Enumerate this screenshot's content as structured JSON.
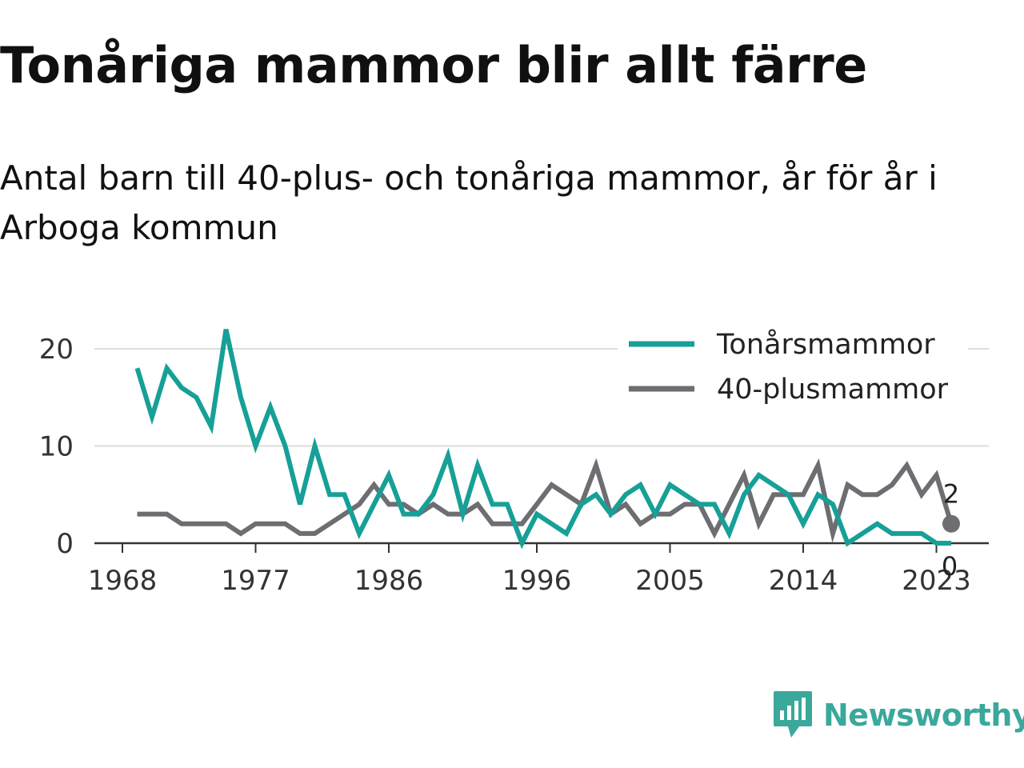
{
  "title": "Tonåriga mammor blir allt färre",
  "subtitle": "Antal barn till 40-plus- och tonåriga mammor, år för år i Arboga kommun",
  "brand": {
    "name": "Newsworthy",
    "color": "#3aa89a",
    "icon": "newsworthy-logo-icon"
  },
  "chart_data": {
    "type": "line",
    "x": [
      1969,
      1970,
      1971,
      1972,
      1973,
      1974,
      1975,
      1976,
      1977,
      1978,
      1979,
      1980,
      1981,
      1982,
      1983,
      1984,
      1985,
      1986,
      1987,
      1988,
      1989,
      1990,
      1991,
      1992,
      1993,
      1994,
      1995,
      1996,
      1997,
      1998,
      1999,
      2000,
      2001,
      2002,
      2003,
      2004,
      2005,
      2006,
      2007,
      2008,
      2009,
      2010,
      2011,
      2012,
      2013,
      2014,
      2015,
      2016,
      2017,
      2018,
      2019,
      2020,
      2021,
      2022,
      2023,
      2024
    ],
    "series": [
      {
        "name": "Tonårsmammor",
        "color": "#16a097",
        "values": [
          18,
          13,
          18,
          16,
          15,
          12,
          22,
          15,
          10,
          14,
          10,
          4,
          10,
          5,
          5,
          1,
          4,
          7,
          3,
          3,
          5,
          9,
          3,
          8,
          4,
          4,
          0,
          3,
          2,
          1,
          4,
          5,
          3,
          5,
          6,
          3,
          6,
          5,
          4,
          4,
          1,
          5,
          7,
          6,
          5,
          2,
          5,
          4,
          0,
          1,
          2,
          1,
          1,
          1,
          0,
          0
        ]
      },
      {
        "name": "40-plusmammor",
        "color": "#6d6d72",
        "values": [
          3,
          3,
          3,
          2,
          2,
          2,
          2,
          1,
          2,
          2,
          2,
          1,
          1,
          2,
          3,
          4,
          6,
          4,
          4,
          3,
          4,
          3,
          3,
          4,
          2,
          2,
          2,
          4,
          6,
          5,
          4,
          8,
          3,
          4,
          2,
          3,
          3,
          4,
          4,
          1,
          4,
          7,
          2,
          5,
          5,
          5,
          8,
          1,
          6,
          5,
          5,
          6,
          8,
          5,
          7,
          2
        ]
      }
    ],
    "end_labels": {
      "40-plusmammor": "2",
      "Tonårsmammor": "0"
    },
    "xticks": [
      "1968",
      "1977",
      "1986",
      "1996",
      "2005",
      "2014",
      "2023"
    ],
    "yticks": [
      "0",
      "10",
      "20"
    ],
    "xlim": [
      1968,
      2025
    ],
    "ylim": [
      0,
      22
    ],
    "grid": true,
    "legend_position": "top-right"
  }
}
